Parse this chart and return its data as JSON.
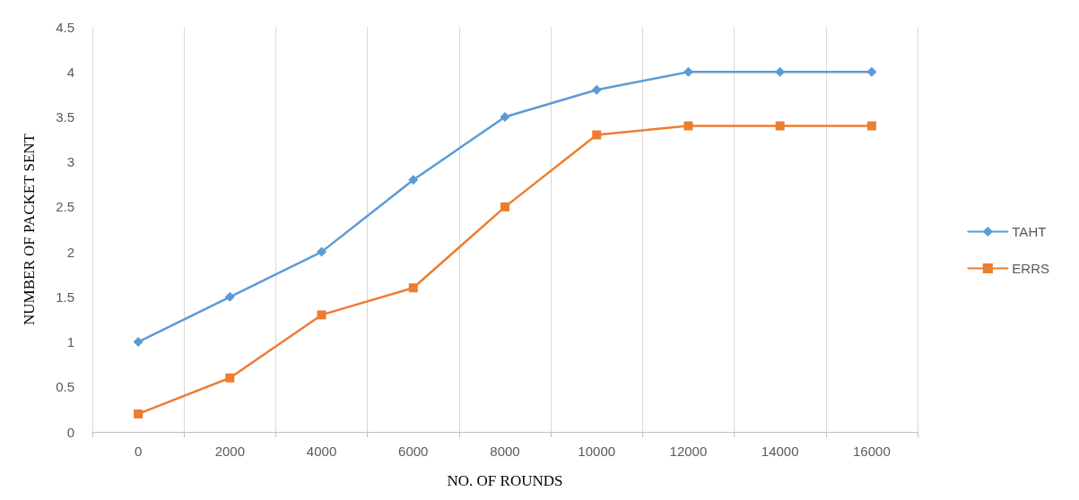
{
  "chart_data": {
    "type": "line",
    "xlabel": "NO. OF ROUNDS",
    "ylabel": "NUMBER OF PACKET SENT",
    "categories": [
      "0",
      "2000",
      "4000",
      "6000",
      "8000",
      "10000",
      "12000",
      "14000",
      "16000"
    ],
    "series": [
      {
        "name": "TAHT",
        "color": "#5b9bd5",
        "marker": "diamond",
        "values": [
          1,
          1.5,
          2,
          2.8,
          3.5,
          3.8,
          4,
          4,
          4
        ]
      },
      {
        "name": "ERRS",
        "color": "#ed7d31",
        "marker": "square",
        "values": [
          0.2,
          0.6,
          1.3,
          1.6,
          2.5,
          3.3,
          3.4,
          3.4,
          3.4
        ]
      }
    ],
    "ylim": [
      0,
      4.5
    ],
    "yticks": [
      0,
      0.5,
      1,
      1.5,
      2,
      2.5,
      3,
      3.5,
      4,
      4.5
    ],
    "grid": "x",
    "legend": "right"
  }
}
